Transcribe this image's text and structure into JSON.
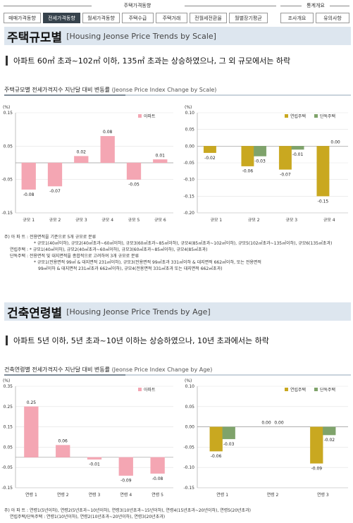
{
  "nav": {
    "group1_label": "주택가격동향",
    "group2_label": "통계개요",
    "tabs": [
      {
        "label": "매매가격동향",
        "active": false
      },
      {
        "label": "전세가격동향",
        "active": true
      },
      {
        "label": "월세가격동향",
        "active": false
      },
      {
        "label": "주택수급",
        "active": false
      },
      {
        "label": "주택거래",
        "active": false
      },
      {
        "label": "전월세전환율",
        "active": false
      },
      {
        "label": "월별장기평균",
        "active": false
      }
    ],
    "tabs2": [
      {
        "label": "조사개요"
      },
      {
        "label": "유의사항"
      }
    ]
  },
  "section1": {
    "title": "주택규모별",
    "subtitle": "[Housing Jeonse Price Trends by Scale]",
    "headline": "아파트 60㎡ 초과~102㎡ 이하, 135㎡ 초과는 상승하였으나, 그 외 규모에서는 하락",
    "chart_title": "주택규모별 전세가격지수 지난달 대비 변동률",
    "chart_title_en": "(Jeonse Price Index Change by Scale)",
    "notes": [
      "주) 아 파 트 : 전용면적을 기준으로 5개 규모로 분류",
      "* 규모1(40㎡이하), 규모2(40㎡초과~60㎡이하), 규모3(60㎡초과~85㎡이하), 규모4(85㎡초과~102㎡이하), 규모5(102㎡초과~135㎡이하), 규모6(135㎡초과)",
      "연립주택 : * 규모1(40㎡이하), 규모2(40㎡초과~60㎡이하), 규모3(60㎡초과~85㎡이하), 규모4(85㎡초과)",
      "단독주택 : 전용면적 및 대지면적을 종합적으로 고려하여 3개 규모로 분류",
      "* 규모1(전용면적 99㎡ & 대지면적 231㎡이하), 규모3(전용면적 99㎡초과 331㎡이하 & 대지면적 662㎡이하, 또는 전용면적",
      "99㎡이하 & 대지면적 231㎡초과 662㎡이하), 규모4(전용면적 331㎡초과 또는 대지면적 662㎡초과)"
    ]
  },
  "section2": {
    "title": "건축연령별",
    "subtitle": "[Housing Jeonse Price Trends by Age]",
    "headline": "아파트 5년 이하, 5년 초과~10년 이하는 상승하였으나, 10년 초과에서는 하락",
    "chart_title": "건축연령별 전세가격지수 지난달 대비 변동률",
    "chart_title_en": "(Jeonse Price Index Change by Age)",
    "notes": [
      "주) 아 파 트 : 연령1(5년이하), 연령2(5년초과~10년이하), 연령3(10년초과~15년이하), 연령4(15년초과~20년이하), 연령5(20년초과)",
      "연립주택/단독주택 : 연령1(10년이하), 연령2(10년초과~20년이하), 연령3(20년초과)"
    ]
  },
  "chart_data": [
    {
      "type": "bar",
      "unit": "(%)",
      "categories": [
        "규모 1",
        "규모 2",
        "규모 3",
        "규모 4",
        "규모 5",
        "규모 6"
      ],
      "series": [
        {
          "name": "아파트",
          "values": [
            -0.08,
            -0.07,
            0.02,
            0.08,
            -0.05,
            0.01
          ],
          "labels": [
            "-0.08",
            "-0.07",
            "0.02",
            "0.08",
            "-0.05",
            "0.01"
          ],
          "color": "#f4a6b3"
        }
      ],
      "ylim": [
        -0.15,
        0.15
      ],
      "yticks": [
        "0.15",
        "0.05",
        "-0.05",
        "-0.15"
      ],
      "ytick_values": [
        0.15,
        0.05,
        -0.05,
        -0.15
      ]
    },
    {
      "type": "bar",
      "unit": "(%)",
      "categories": [
        "규모 1",
        "규모 2",
        "규모 3",
        "규모 4"
      ],
      "series": [
        {
          "name": "연립주택",
          "values": [
            -0.02,
            -0.06,
            -0.07,
            -0.15
          ],
          "labels": [
            "-0.02",
            "-0.06",
            "-0.07",
            "-0.15"
          ],
          "color": "#c9a820"
        },
        {
          "name": "단독주택",
          "values": [
            null,
            -0.03,
            -0.01,
            0.0
          ],
          "labels": [
            "",
            "-0.03",
            "-0.01",
            "0.00"
          ],
          "color": "#7fa36b"
        }
      ],
      "ylim": [
        -0.2,
        0.1
      ],
      "yticks": [
        "0.10",
        "0.05",
        "0.00",
        "-0.05",
        "-0.10",
        "-0.15",
        "-0.20"
      ],
      "ytick_values": [
        0.1,
        0.05,
        0.0,
        -0.05,
        -0.1,
        -0.15,
        -0.2
      ]
    },
    {
      "type": "bar",
      "unit": "(%)",
      "categories": [
        "연령 1",
        "연령 2",
        "연령 3",
        "연령 4",
        "연령 5"
      ],
      "series": [
        {
          "name": "아파트",
          "values": [
            0.25,
            0.06,
            -0.01,
            -0.09,
            -0.08
          ],
          "labels": [
            "0.25",
            "0.06",
            "-0.01",
            "-0.09",
            "-0.08"
          ],
          "color": "#f4a6b3"
        }
      ],
      "ylim": [
        -0.15,
        0.35
      ],
      "yticks": [
        "0.35",
        "0.25",
        "0.15",
        "0.05",
        "-0.05",
        "-0.15"
      ],
      "ytick_values": [
        0.35,
        0.25,
        0.15,
        0.05,
        -0.05,
        -0.15
      ]
    },
    {
      "type": "bar",
      "unit": "(%)",
      "categories": [
        "연령 1",
        "연령 2",
        "연령 3"
      ],
      "series": [
        {
          "name": "연립주택",
          "values": [
            -0.06,
            0.0,
            -0.09
          ],
          "labels": [
            "-0.06",
            "0.00",
            "-0.09"
          ],
          "color": "#c9a820"
        },
        {
          "name": "단독주택",
          "values": [
            -0.03,
            0.0,
            -0.02
          ],
          "labels": [
            "-0.03",
            "0.00",
            "-0.02"
          ],
          "color": "#7fa36b"
        }
      ],
      "ylim": [
        -0.15,
        0.1
      ],
      "yticks": [
        "0.10",
        "0.05",
        "0.00",
        "-0.05",
        "-0.10",
        "-0.15"
      ],
      "ytick_values": [
        0.1,
        0.05,
        0.0,
        -0.05,
        -0.1,
        -0.15
      ]
    }
  ]
}
